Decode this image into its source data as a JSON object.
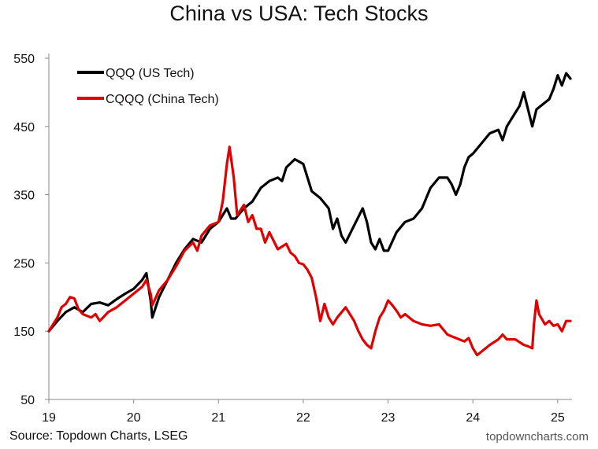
{
  "chart_data": {
    "type": "line",
    "title": "China vs USA: Tech Stocks",
    "xlabel": "",
    "ylabel": "",
    "x_ticks": [
      "19",
      "20",
      "21",
      "22",
      "23",
      "24",
      "25"
    ],
    "y_ticks": [
      "50",
      "150",
      "250",
      "350",
      "450",
      "550"
    ],
    "xlim": [
      2019.0,
      2025.15
    ],
    "ylim": [
      50,
      550
    ],
    "grid": false,
    "legend": "top-left",
    "series": [
      {
        "name": "QQQ (US Tech)",
        "color": "#000000",
        "points": [
          [
            2019.0,
            150
          ],
          [
            2019.1,
            165
          ],
          [
            2019.2,
            178
          ],
          [
            2019.3,
            185
          ],
          [
            2019.4,
            178
          ],
          [
            2019.5,
            190
          ],
          [
            2019.6,
            192
          ],
          [
            2019.7,
            188
          ],
          [
            2019.8,
            197
          ],
          [
            2019.9,
            205
          ],
          [
            2020.0,
            212
          ],
          [
            2020.1,
            225
          ],
          [
            2020.15,
            235
          ],
          [
            2020.2,
            195
          ],
          [
            2020.22,
            170
          ],
          [
            2020.3,
            200
          ],
          [
            2020.4,
            225
          ],
          [
            2020.5,
            250
          ],
          [
            2020.6,
            270
          ],
          [
            2020.7,
            285
          ],
          [
            2020.8,
            280
          ],
          [
            2020.9,
            300
          ],
          [
            2021.0,
            310
          ],
          [
            2021.1,
            330
          ],
          [
            2021.15,
            315
          ],
          [
            2021.2,
            315
          ],
          [
            2021.3,
            330
          ],
          [
            2021.4,
            340
          ],
          [
            2021.5,
            360
          ],
          [
            2021.6,
            370
          ],
          [
            2021.7,
            375
          ],
          [
            2021.75,
            370
          ],
          [
            2021.8,
            390
          ],
          [
            2021.9,
            402
          ],
          [
            2022.0,
            395
          ],
          [
            2022.05,
            375
          ],
          [
            2022.1,
            355
          ],
          [
            2022.2,
            345
          ],
          [
            2022.3,
            330
          ],
          [
            2022.35,
            300
          ],
          [
            2022.4,
            315
          ],
          [
            2022.45,
            290
          ],
          [
            2022.5,
            280
          ],
          [
            2022.6,
            305
          ],
          [
            2022.7,
            330
          ],
          [
            2022.75,
            310
          ],
          [
            2022.8,
            280
          ],
          [
            2022.85,
            270
          ],
          [
            2022.9,
            285
          ],
          [
            2022.95,
            268
          ],
          [
            2023.0,
            268
          ],
          [
            2023.1,
            295
          ],
          [
            2023.2,
            310
          ],
          [
            2023.3,
            315
          ],
          [
            2023.4,
            330
          ],
          [
            2023.5,
            360
          ],
          [
            2023.6,
            375
          ],
          [
            2023.7,
            375
          ],
          [
            2023.75,
            365
          ],
          [
            2023.8,
            350
          ],
          [
            2023.85,
            365
          ],
          [
            2023.9,
            390
          ],
          [
            2023.95,
            405
          ],
          [
            2024.0,
            410
          ],
          [
            2024.1,
            425
          ],
          [
            2024.2,
            440
          ],
          [
            2024.3,
            445
          ],
          [
            2024.35,
            430
          ],
          [
            2024.4,
            450
          ],
          [
            2024.5,
            470
          ],
          [
            2024.55,
            480
          ],
          [
            2024.6,
            500
          ],
          [
            2024.65,
            475
          ],
          [
            2024.7,
            450
          ],
          [
            2024.75,
            475
          ],
          [
            2024.8,
            480
          ],
          [
            2024.9,
            490
          ],
          [
            2024.95,
            505
          ],
          [
            2025.0,
            525
          ],
          [
            2025.05,
            510
          ],
          [
            2025.1,
            528
          ],
          [
            2025.15,
            520
          ]
        ]
      },
      {
        "name": "CQQQ (China Tech)",
        "color": "#e00000",
        "points": [
          [
            2019.0,
            150
          ],
          [
            2019.05,
            160
          ],
          [
            2019.1,
            170
          ],
          [
            2019.15,
            185
          ],
          [
            2019.2,
            190
          ],
          [
            2019.25,
            200
          ],
          [
            2019.3,
            198
          ],
          [
            2019.35,
            182
          ],
          [
            2019.4,
            175
          ],
          [
            2019.5,
            170
          ],
          [
            2019.55,
            175
          ],
          [
            2019.6,
            165
          ],
          [
            2019.7,
            178
          ],
          [
            2019.8,
            185
          ],
          [
            2019.9,
            195
          ],
          [
            2020.0,
            205
          ],
          [
            2020.1,
            215
          ],
          [
            2020.15,
            225
          ],
          [
            2020.2,
            205
          ],
          [
            2020.22,
            188
          ],
          [
            2020.3,
            210
          ],
          [
            2020.4,
            225
          ],
          [
            2020.5,
            245
          ],
          [
            2020.6,
            268
          ],
          [
            2020.7,
            280
          ],
          [
            2020.75,
            268
          ],
          [
            2020.8,
            290
          ],
          [
            2020.9,
            305
          ],
          [
            2021.0,
            310
          ],
          [
            2021.05,
            340
          ],
          [
            2021.1,
            395
          ],
          [
            2021.13,
            420
          ],
          [
            2021.18,
            375
          ],
          [
            2021.22,
            320
          ],
          [
            2021.3,
            335
          ],
          [
            2021.35,
            310
          ],
          [
            2021.4,
            320
          ],
          [
            2021.45,
            300
          ],
          [
            2021.5,
            300
          ],
          [
            2021.55,
            280
          ],
          [
            2021.6,
            295
          ],
          [
            2021.7,
            270
          ],
          [
            2021.8,
            278
          ],
          [
            2021.85,
            265
          ],
          [
            2021.9,
            260
          ],
          [
            2021.95,
            250
          ],
          [
            2022.0,
            248
          ],
          [
            2022.05,
            240
          ],
          [
            2022.1,
            228
          ],
          [
            2022.15,
            200
          ],
          [
            2022.2,
            165
          ],
          [
            2022.25,
            190
          ],
          [
            2022.3,
            170
          ],
          [
            2022.35,
            160
          ],
          [
            2022.4,
            170
          ],
          [
            2022.5,
            185
          ],
          [
            2022.55,
            175
          ],
          [
            2022.6,
            165
          ],
          [
            2022.65,
            150
          ],
          [
            2022.7,
            138
          ],
          [
            2022.75,
            130
          ],
          [
            2022.8,
            125
          ],
          [
            2022.85,
            150
          ],
          [
            2022.9,
            170
          ],
          [
            2022.95,
            180
          ],
          [
            2023.0,
            195
          ],
          [
            2023.05,
            188
          ],
          [
            2023.1,
            180
          ],
          [
            2023.15,
            170
          ],
          [
            2023.2,
            175
          ],
          [
            2023.3,
            165
          ],
          [
            2023.4,
            160
          ],
          [
            2023.5,
            158
          ],
          [
            2023.6,
            160
          ],
          [
            2023.7,
            145
          ],
          [
            2023.8,
            140
          ],
          [
            2023.9,
            135
          ],
          [
            2023.95,
            140
          ],
          [
            2024.0,
            125
          ],
          [
            2024.05,
            115
          ],
          [
            2024.1,
            120
          ],
          [
            2024.2,
            130
          ],
          [
            2024.3,
            138
          ],
          [
            2024.35,
            145
          ],
          [
            2024.4,
            138
          ],
          [
            2024.5,
            138
          ],
          [
            2024.6,
            130
          ],
          [
            2024.65,
            128
          ],
          [
            2024.7,
            125
          ],
          [
            2024.72,
            160
          ],
          [
            2024.75,
            195
          ],
          [
            2024.78,
            175
          ],
          [
            2024.85,
            160
          ],
          [
            2024.9,
            165
          ],
          [
            2024.95,
            158
          ],
          [
            2025.0,
            160
          ],
          [
            2025.05,
            150
          ],
          [
            2025.1,
            165
          ],
          [
            2025.15,
            165
          ]
        ]
      }
    ]
  },
  "footer": {
    "source": "Source: Topdown Charts, LSEG",
    "watermark": "topdowncharts.com"
  }
}
